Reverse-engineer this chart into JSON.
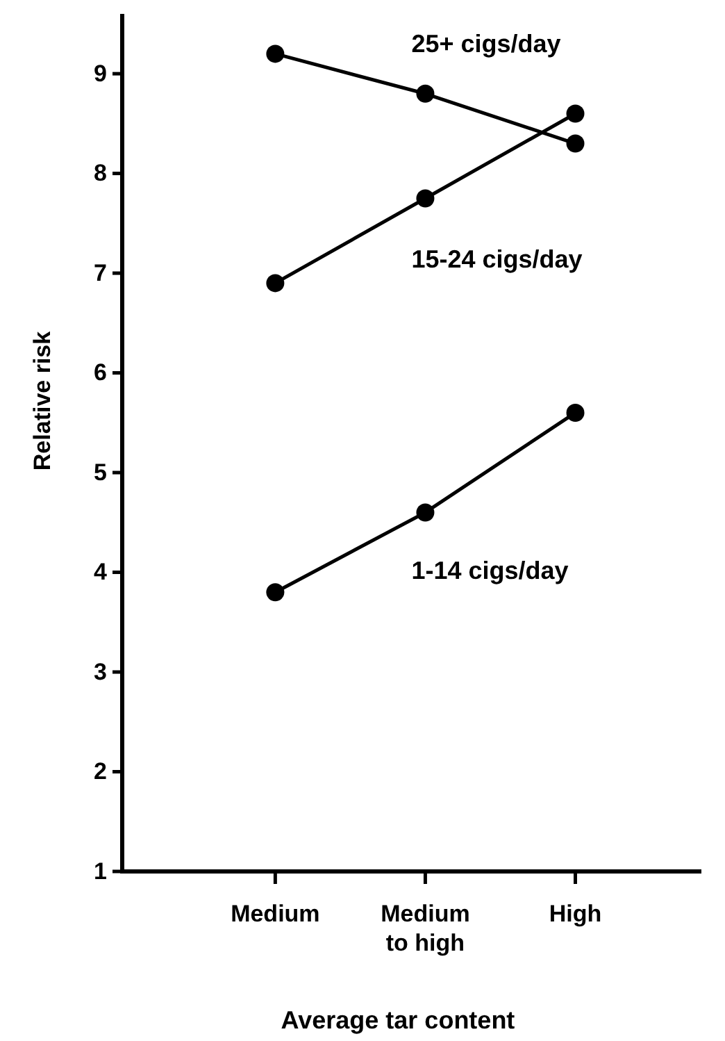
{
  "chart_data": {
    "type": "line",
    "xlabel": "Average tar content",
    "ylabel": "Relative risk",
    "categories": [
      "Medium",
      "Medium\nto high",
      "High"
    ],
    "series": [
      {
        "name": "25+ cigs/day",
        "color": "#000000",
        "values": [
          9.2,
          8.8,
          8.3
        ]
      },
      {
        "name": "15-24 cigs/day",
        "color": "#000000",
        "values": [
          6.9,
          7.75,
          8.6
        ]
      },
      {
        "name": "1-14 cigs/day",
        "color": "#000000",
        "values": [
          3.8,
          4.6,
          5.6
        ]
      }
    ],
    "ylim": [
      1,
      9.6
    ],
    "yticks": [
      1,
      2,
      3,
      4,
      5,
      6,
      7,
      8,
      9
    ],
    "grid": false,
    "marker": "circle",
    "line_style": "solid"
  }
}
